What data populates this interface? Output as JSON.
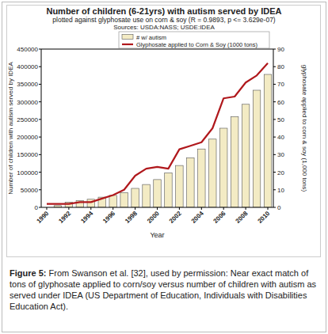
{
  "chart_data": {
    "type": "bar",
    "title": "Number of children (6-21yrs) with autism served by IDEA",
    "subtitle": "plotted against glyphosate use on corn & soy (R = 0.9893, p <= 3.629e-07)",
    "sources": "Sources: USDA:NASS; USDE:IDEA",
    "x_label": "Year",
    "y_label": "Number of children with autism served by IDEA",
    "y2_label": "glyphosate applied to corn & soy (1,000 tons)",
    "caption_label": "Figure 5:",
    "caption": "From Swanson et al. [32], used by permission: Near exact match of tons of glyphosate applied to corn/soy versus number of children with autism as served under IDEA (US Department of Education, Individuals with Disabilities Education Act).",
    "categories": [
      "1990",
      null,
      "1992",
      null,
      "1994",
      null,
      "1996",
      null,
      "1998",
      null,
      "2000",
      null,
      "2002",
      null,
      "2004",
      null,
      "2006",
      null,
      "2008",
      null,
      "2010"
    ],
    "series": [
      {
        "name": "# w/ autism",
        "type": "bar",
        "color": "#f3ebc4",
        "values": [
          null,
          5000,
          15000,
          19000,
          23000,
          29000,
          34000,
          42000,
          54000,
          65000,
          79000,
          98000,
          119000,
          141000,
          166000,
          194000,
          225000,
          258000,
          293000,
          333000,
          378000
        ]
      },
      {
        "name": "Glyphosate applied to Corn & Soy (1000 tons)",
        "type": "line",
        "axis": "y2",
        "color": "#b0181c",
        "values": [
          2,
          2,
          2,
          3,
          3,
          5,
          7,
          10,
          18,
          22,
          23,
          22,
          33,
          35,
          37,
          45,
          62,
          63,
          71,
          75,
          82
        ]
      }
    ],
    "ylim": [
      0,
      450000
    ],
    "yticks": [
      0,
      50000,
      100000,
      150000,
      200000,
      250000,
      300000,
      350000,
      400000,
      450000
    ],
    "y2lim": [
      0,
      90
    ],
    "y2ticks": [
      0,
      10,
      20,
      30,
      40,
      50,
      60,
      70,
      80,
      90
    ],
    "legend": "top",
    "grid": false
  }
}
